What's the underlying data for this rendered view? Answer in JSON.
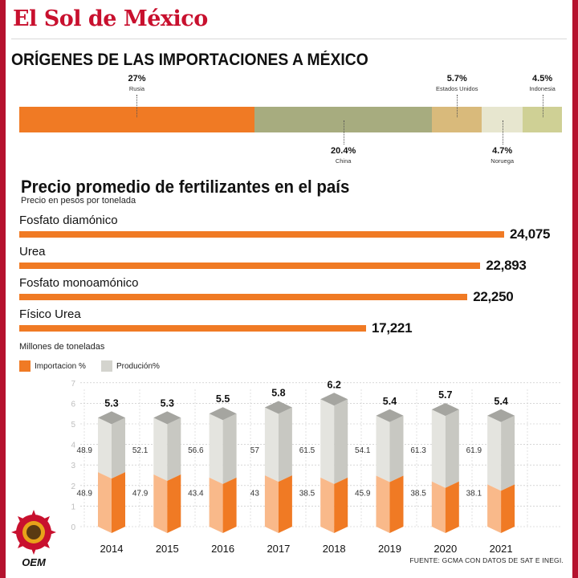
{
  "header": {
    "brand": "El Sol de México",
    "imports_title": "ORÍGENES DE LAS IMPORTACIONES A MÉXICO"
  },
  "imports": [
    {
      "pct": "27%",
      "country": "Rusia",
      "value": 27,
      "color": "#f07a24",
      "label_pos": "top"
    },
    {
      "pct": "20.4%",
      "country": "China",
      "value": 20.4,
      "color": "#a7ac7f",
      "label_pos": "bottom"
    },
    {
      "pct": "5.7%",
      "country": "Estados Unidos",
      "value": 5.7,
      "color": "#d9ba7b",
      "label_pos": "top"
    },
    {
      "pct": "4.7%",
      "country": "Noruega",
      "value": 4.7,
      "color": "#e7e6cf",
      "label_pos": "bottom"
    },
    {
      "pct": "4.5%",
      "country": "Indonesia",
      "value": 4.5,
      "color": "#cfd095",
      "label_pos": "top"
    }
  ],
  "prices": {
    "title": "Precio promedio de fertilizantes en el país",
    "subtitle": "Precio en pesos por tonelada",
    "items": [
      {
        "label": "Fosfato diamónico",
        "value_text": "24,075",
        "value": 24075
      },
      {
        "label": "Urea",
        "value_text": "22,893",
        "value": 22893
      },
      {
        "label": "Fosfato monoamónico",
        "value_text": "22,250",
        "value": 22250
      },
      {
        "label": "Físico Urea",
        "value_text": "17,221",
        "value": 17221
      }
    ]
  },
  "chart_data": {
    "type": "bar",
    "ylabel": "Millones de toneladas",
    "ylim": [
      0,
      7
    ],
    "yticks": [
      "0",
      "1",
      "2",
      "3",
      "4",
      "5",
      "6",
      "7"
    ],
    "categories": [
      "2014",
      "2015",
      "2016",
      "2017",
      "2018",
      "2019",
      "2020",
      "2021"
    ],
    "totals": [
      5.3,
      5.3,
      5.5,
      5.8,
      6.2,
      5.4,
      5.7,
      5.4
    ],
    "totals_text": [
      "5.3",
      "5.3",
      "5.5",
      "5.8",
      "6.2",
      "5.4",
      "5.7",
      "5.4"
    ],
    "series": [
      {
        "name": "Importacion %",
        "color": "#f07a24",
        "values": [
          48.9,
          47.9,
          43.4,
          43,
          38.5,
          45.9,
          38.5,
          38.1
        ],
        "labels": [
          "48.9",
          "47.9",
          "43.4",
          "43",
          "38.5",
          "45.9",
          "38.5",
          "38.1"
        ]
      },
      {
        "name": "Produción%",
        "color": "#cfcfc8",
        "values": [
          48.9,
          52.1,
          56.6,
          57,
          61.5,
          54.1,
          61.3,
          61.9
        ],
        "labels": [
          "48.9",
          "52.1",
          "56.6",
          "57",
          "61.5",
          "54.1",
          "61.3",
          "61.9"
        ]
      }
    ]
  },
  "footer": {
    "source": "FUENTE: GCMA CON DATOS DE SAT E INEGI.",
    "logo_text": "OEM"
  },
  "colors": {
    "accent": "#c8102e",
    "orange": "#f07a24",
    "frame": "#b5122e"
  }
}
